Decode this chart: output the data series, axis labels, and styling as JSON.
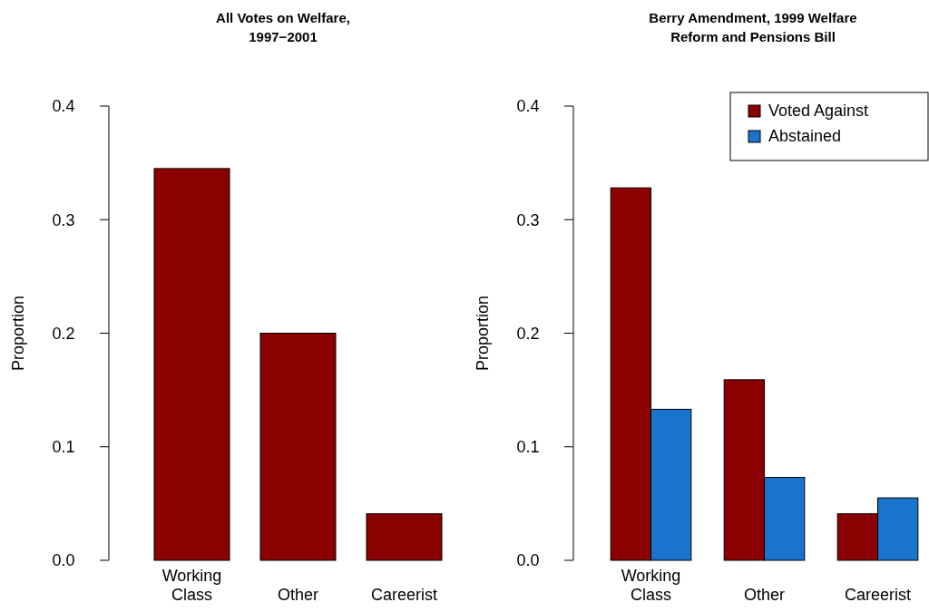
{
  "chart_data": [
    {
      "type": "bar",
      "title": "All Votes on Welfare, 1997−2001",
      "ylabel": "Proportion",
      "categories": [
        "Working Class",
        "Other",
        "Careerist"
      ],
      "values": [
        0.345,
        0.2,
        0.041
      ],
      "color": "#8b0000",
      "ylim": [
        0,
        0.4
      ],
      "yticks": [
        {
          "value": 0,
          "label": "0.0"
        },
        0.1,
        0.2,
        0.3,
        0.4
      ],
      "grid": false,
      "legend": false
    },
    {
      "type": "bar",
      "title": "Berry Amendment, 1999 Welfare Reform and Pensions Bill",
      "ylabel": "Proportion",
      "categories": [
        "Working Class",
        "Other",
        "Careerist"
      ],
      "series": [
        {
          "name": "Voted Against",
          "color": "#8b0000",
          "values": [
            0.328,
            0.159,
            0.041
          ]
        },
        {
          "name": "Abstained",
          "color": "#1874cd",
          "values": [
            0.133,
            0.073,
            0.055
          ]
        }
      ],
      "ylim": [
        0,
        0.4
      ],
      "yticks": [
        {
          "value": 0,
          "label": "0.0"
        },
        0.1,
        0.2,
        0.3,
        0.4
      ],
      "grid": false,
      "legend": "top right"
    }
  ]
}
